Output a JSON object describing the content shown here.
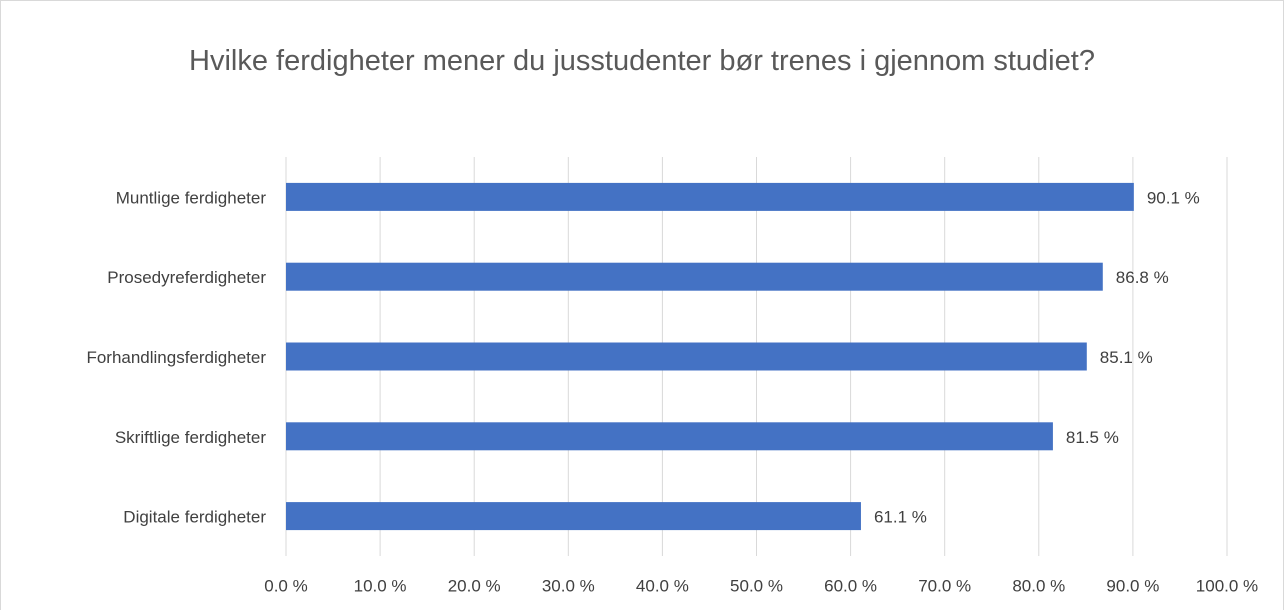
{
  "chart_data": {
    "type": "bar",
    "orientation": "horizontal",
    "title": "Hvilke ferdigheter mener du jusstudenter bør trenes i gjennom studiet?",
    "categories": [
      "Muntlige ferdigheter",
      "Prosedyreferdigheter",
      "Forhandlingsferdigheter",
      "Skriftlige ferdigheter",
      "Digitale ferdigheter"
    ],
    "values": [
      90.1,
      86.8,
      85.1,
      81.5,
      61.1
    ],
    "value_labels": [
      "90.1 %",
      "86.8 %",
      "85.1 %",
      "81.5 %",
      "61.1 %"
    ],
    "color": "#4472c4",
    "xlim": [
      0,
      100
    ],
    "xticks": [
      {
        "value": 0,
        "label": "0.0 %"
      },
      {
        "value": 10,
        "label": "10.0 %"
      },
      {
        "value": 20,
        "label": "20.0 %"
      },
      {
        "value": 30,
        "label": "30.0 %"
      },
      {
        "value": 40,
        "label": "40.0 %"
      },
      {
        "value": 50,
        "label": "50.0 %"
      },
      {
        "value": 60,
        "label": "60.0 %"
      },
      {
        "value": 70,
        "label": "70.0 %"
      },
      {
        "value": 80,
        "label": "80.0 %"
      },
      {
        "value": 90,
        "label": "90.0 %"
      },
      {
        "value": 100,
        "label": "100.0 %"
      }
    ],
    "grid": true
  }
}
